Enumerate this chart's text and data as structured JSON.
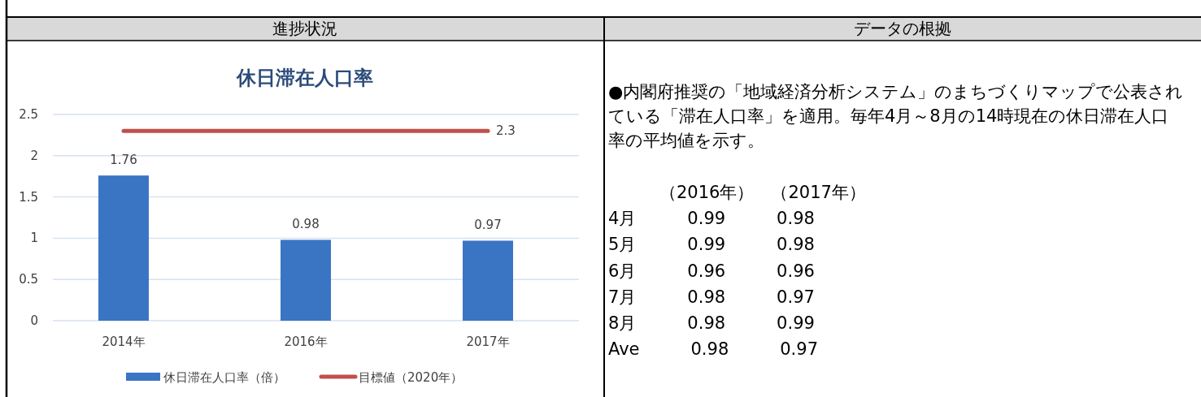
{
  "chart_data": [
    {
      "type": "bar",
      "title": "休日滞在人口率",
      "annotations": [
        "進捗状況"
      ],
      "categories": [
        "2014年",
        "2016年",
        "2017年"
      ],
      "series": [
        {
          "name": "休日滞在人口率（倍）",
          "type": "bar",
          "color": "#3a75c4",
          "values": [
            1.76,
            0.98,
            0.97
          ],
          "value_labels": [
            "1.76",
            "0.98",
            "0.97"
          ]
        },
        {
          "name": "目標値（2020年）",
          "type": "line",
          "color": "#c0504d",
          "values": [
            2.3,
            2.3,
            2.3
          ],
          "value_labels": [
            null,
            null,
            "2.3"
          ]
        }
      ],
      "ylim": [
        0,
        2.5
      ],
      "yticks": [
        0,
        0.5,
        1,
        1.5,
        2,
        2.5
      ],
      "grid": "y",
      "legend": "bottom",
      "marker": "none"
    },
    {
      "type": "other",
      "title": "データの根拠",
      "annotations": [
        "●内閣府推奨の「地域経済分析システム」のまちづくりマップで公表されている「滞在人口率」を適用。毎年4月～8月の14時現在の休日滞在人口率の平均値を示す。",
        "　　　（2016年）　（2017年）",
        "4月　　　0.99　　　0.98",
        "5月　　　0.99　　　0.98",
        "6月　　　0.96　　　0.96",
        "7月　　　0.98　　　0.97",
        "8月　　　0.98　　　0.99",
        "Ave　　　0.98　　　0.97"
      ]
    }
  ]
}
